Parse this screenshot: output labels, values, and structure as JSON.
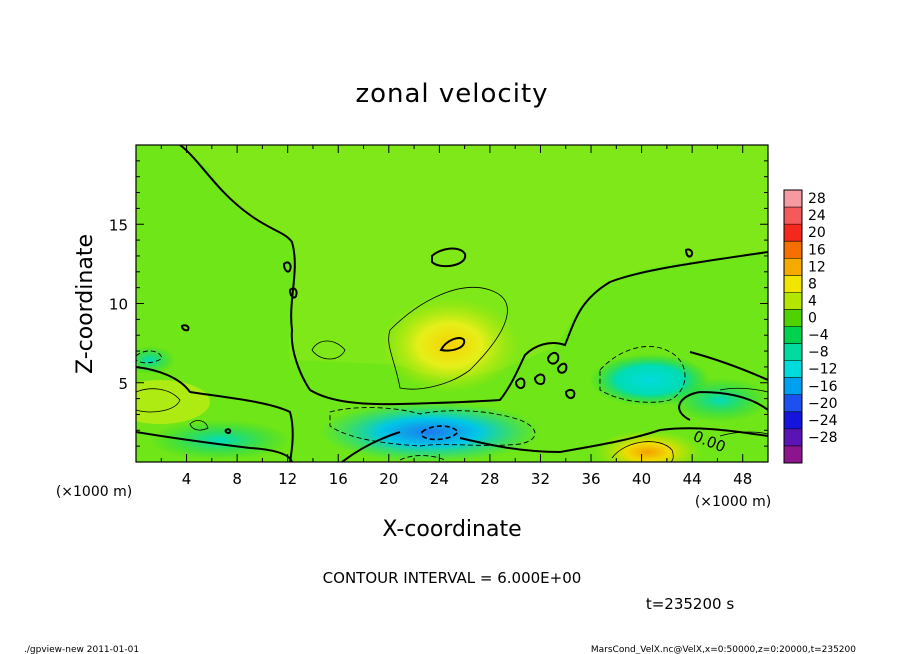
{
  "chart_data": {
    "type": "heatmap",
    "title": "zonal velocity",
    "xlabel": "X-coordinate",
    "ylabel": "Z-coordinate",
    "x_units": "(×1000 m)",
    "y_units": "(×1000 m)",
    "xlim": [
      0,
      50
    ],
    "ylim": [
      0,
      20
    ],
    "x_ticks": [
      4,
      8,
      12,
      16,
      20,
      24,
      28,
      32,
      36,
      40,
      44,
      48
    ],
    "y_ticks": [
      5,
      10,
      15
    ],
    "x_tick_labels": [
      "4",
      "8",
      "12",
      "16",
      "20",
      "24",
      "28",
      "32",
      "36",
      "40",
      "44",
      "48"
    ],
    "y_tick_labels": [
      "5",
      "10",
      "15"
    ],
    "colorbar": {
      "levels": [
        28,
        24,
        20,
        16,
        12,
        8,
        4,
        0,
        -4,
        -8,
        -12,
        -16,
        -20,
        -24,
        -28
      ],
      "labels": [
        "28",
        "24",
        "20",
        "16",
        "12",
        "8",
        "4",
        "0",
        "−4",
        "−8",
        "−12",
        "−16",
        "−20",
        "−24",
        "−28"
      ],
      "colors": [
        "#f59aa0",
        "#f55a5a",
        "#f5281e",
        "#f56e00",
        "#f5aa00",
        "#f0e600",
        "#b4e600",
        "#50d200",
        "#00d250",
        "#00dca0",
        "#00dcdc",
        "#00a0f0",
        "#1e50f0",
        "#1414dc",
        "#5a14b4",
        "#8c148c"
      ]
    },
    "contour_label": "0.00",
    "contour_interval_text": "CONTOUR INTERVAL = 6.000E+00",
    "time_text": "t=235200 s",
    "features": [
      {
        "kind": "max",
        "x": 25,
        "y": 7.5,
        "value": 8
      },
      {
        "kind": "max",
        "x": 40.5,
        "y": 1.2,
        "value": 10
      },
      {
        "kind": "min",
        "x": 23.5,
        "y": 1.8,
        "value": -14
      },
      {
        "kind": "min",
        "x": 40,
        "y": 5.5,
        "value": -7
      }
    ]
  },
  "footer": {
    "left": "./gpview-new  2011-01-01",
    "right": "MarsCond_VelX.nc@VelX,x=0:50000,z=0:20000,t=235200"
  }
}
